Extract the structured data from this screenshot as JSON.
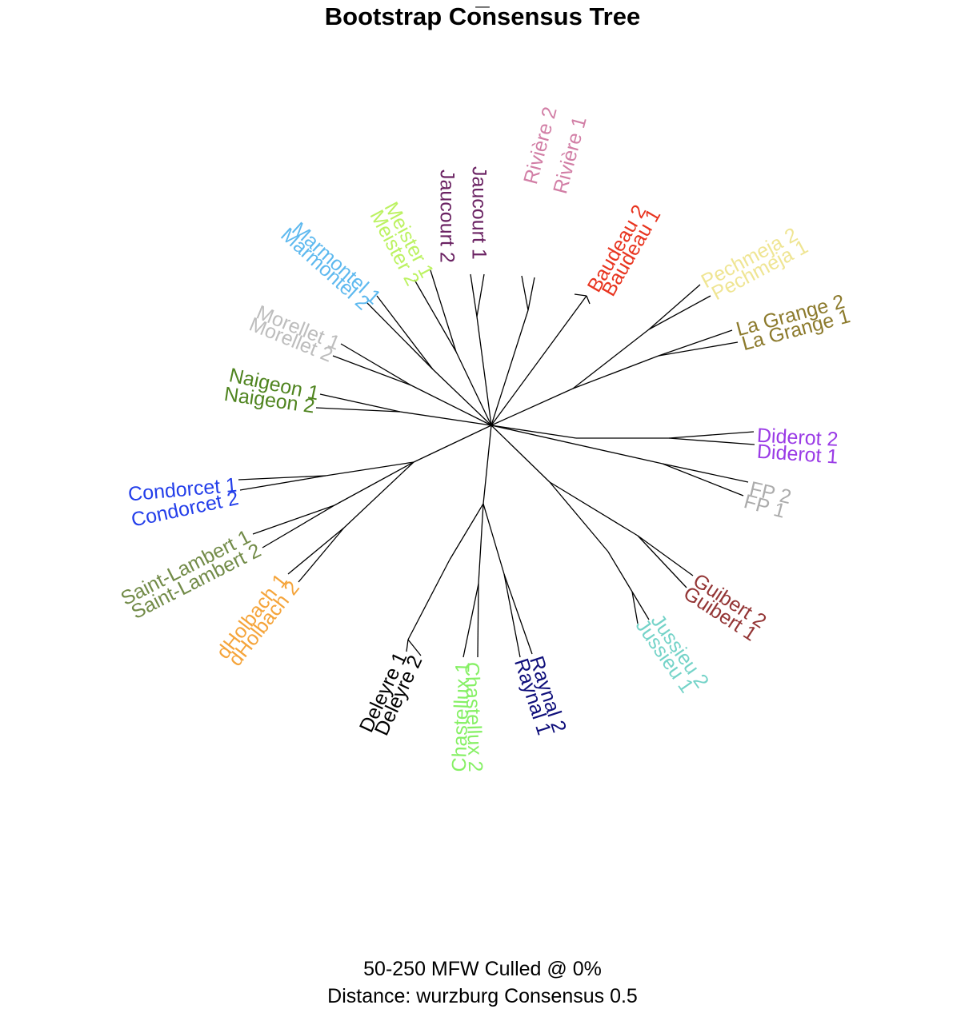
{
  "title_top": "_",
  "title": "Bootstrap Consensus Tree",
  "footer_line1": "50-250 MFW  Culled @ 0%",
  "footer_line2": "Distance: wurzburg Consensus 0.5",
  "tree": {
    "center_node": "root",
    "branches": [
      {
        "group": "La Grange / Pechmeja"
      },
      {
        "group": "Diderot"
      },
      {
        "group": "FP"
      },
      {
        "group": "Guibert / Jussieu"
      },
      {
        "group": "Raynal / Chastellux / Deleyre"
      },
      {
        "group": "dHolbach / Saint-Lambert / Condorcet"
      },
      {
        "group": "Naigeon"
      },
      {
        "group": "Morellet / Marmontel / Meister / Jaucourt / Riviere / Baudeau"
      }
    ],
    "leaves": [
      {
        "label": "Jaucourt 1",
        "color": "#6B2363"
      },
      {
        "label": "Jaucourt 2",
        "color": "#6B2363"
      },
      {
        "label": "Rivière 2",
        "color": "#D27FA6"
      },
      {
        "label": "Rivière 1",
        "color": "#D27FA6"
      },
      {
        "label": "Baudeau 2",
        "color": "#E8341F"
      },
      {
        "label": "Baudeau 1",
        "color": "#E8341F"
      },
      {
        "label": "Pechmeja 2",
        "color": "#EFE593"
      },
      {
        "label": "Pechmeja 1",
        "color": "#EFE593"
      },
      {
        "label": "La Grange 2",
        "color": "#8C7A2C"
      },
      {
        "label": "La Grange 1",
        "color": "#8C7A2C"
      },
      {
        "label": "Diderot 2",
        "color": "#9A3BE6"
      },
      {
        "label": "Diderot 1",
        "color": "#9A3BE6"
      },
      {
        "label": "FP 2",
        "color": "#ACACAC"
      },
      {
        "label": "FP 1",
        "color": "#ACACAC"
      },
      {
        "label": "Guibert 2",
        "color": "#933434"
      },
      {
        "label": "Guibert 1",
        "color": "#933434"
      },
      {
        "label": "Jussieu 2",
        "color": "#74D3C8"
      },
      {
        "label": "Jussieu 1",
        "color": "#74D3C8"
      },
      {
        "label": "Raynal 2",
        "color": "#0E0E7A"
      },
      {
        "label": "Raynal 1",
        "color": "#0E0E7A"
      },
      {
        "label": "Chastellux 2",
        "color": "#86F065"
      },
      {
        "label": "Chastellux 1",
        "color": "#86F065"
      },
      {
        "label": "Deleyre 2",
        "color": "#000000"
      },
      {
        "label": "Deleyre 1",
        "color": "#000000"
      },
      {
        "label": "dHolbach 2",
        "color": "#F5A43A"
      },
      {
        "label": "dHolbach 1",
        "color": "#F5A43A"
      },
      {
        "label": "Saint-Lambert 2",
        "color": "#728B48"
      },
      {
        "label": "Saint-Lambert 1",
        "color": "#728B48"
      },
      {
        "label": "Condorcet 2",
        "color": "#233EEA"
      },
      {
        "label": "Condorcet 1",
        "color": "#233EEA"
      },
      {
        "label": "Naigeon 2",
        "color": "#4F841F"
      },
      {
        "label": "Naigeon 1",
        "color": "#4F841F"
      },
      {
        "label": "Morellet 2",
        "color": "#BDBDBD"
      },
      {
        "label": "Morellet 1",
        "color": "#BDBDBD"
      },
      {
        "label": "Marmontel 2",
        "color": "#5EB9EF"
      },
      {
        "label": "Marmontel 1",
        "color": "#5EB9EF"
      },
      {
        "label": "Meister 2",
        "color": "#BCF262"
      },
      {
        "label": "Meister 1",
        "color": "#BCF262"
      }
    ]
  }
}
